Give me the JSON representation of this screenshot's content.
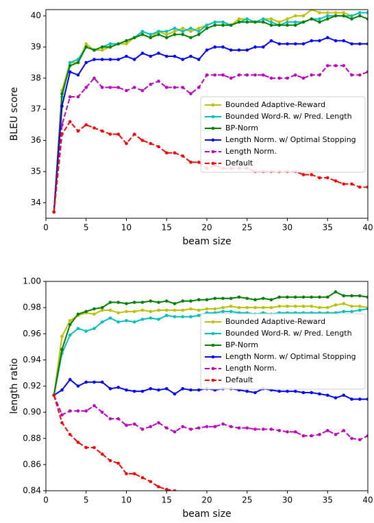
{
  "chart_data": [
    {
      "type": "line",
      "xlabel": "beam size",
      "ylabel": "BLEU score",
      "x": [
        1,
        2,
        3,
        4,
        5,
        6,
        7,
        8,
        9,
        10,
        11,
        12,
        13,
        14,
        15,
        16,
        17,
        18,
        19,
        20,
        21,
        22,
        23,
        24,
        25,
        26,
        27,
        28,
        29,
        30,
        31,
        32,
        33,
        34,
        35,
        36,
        37,
        38,
        39,
        40
      ],
      "xlim": [
        0,
        40
      ],
      "xticks": [
        0,
        5,
        10,
        15,
        20,
        25,
        30,
        35,
        40
      ],
      "ylim": [
        33.5,
        40.2
      ],
      "yticks": [
        34,
        35,
        36,
        37,
        38,
        39,
        40
      ],
      "legend": "center right",
      "series": [
        {
          "name": "Bounded Adaptive-Reward",
          "color": "#bfbf00",
          "linestyle": "solid",
          "values": [
            33.7,
            37.6,
            38.5,
            38.5,
            39.1,
            38.9,
            38.9,
            39.0,
            39.1,
            39.1,
            39.3,
            39.4,
            39.3,
            39.5,
            39.4,
            39.5,
            39.6,
            39.5,
            39.6,
            39.7,
            39.8,
            39.8,
            39.7,
            39.9,
            39.9,
            39.8,
            39.9,
            39.9,
            39.8,
            39.9,
            40.0,
            40.0,
            40.2,
            40.1,
            40.1,
            40.1,
            40.1,
            40.0,
            40.1,
            40.1
          ]
        },
        {
          "name": "Bounded Word-R. w/ Pred. Length",
          "color": "#00bfbf",
          "linestyle": "solid",
          "values": [
            33.7,
            37.4,
            38.5,
            38.6,
            39.0,
            38.9,
            39.0,
            39.1,
            39.1,
            39.2,
            39.3,
            39.5,
            39.4,
            39.5,
            39.5,
            39.6,
            39.5,
            39.6,
            39.5,
            39.7,
            39.8,
            39.8,
            39.7,
            39.8,
            39.9,
            39.8,
            39.9,
            39.8,
            39.7,
            39.8,
            39.8,
            39.8,
            39.9,
            39.9,
            40.0,
            40.0,
            40.0,
            40.0,
            40.1,
            40.1
          ]
        },
        {
          "name": "BP-Norm",
          "color": "#008000",
          "linestyle": "solid",
          "values": [
            33.7,
            37.5,
            38.4,
            38.5,
            39.0,
            38.9,
            39.0,
            39.0,
            39.1,
            39.2,
            39.3,
            39.4,
            39.3,
            39.4,
            39.3,
            39.4,
            39.4,
            39.3,
            39.4,
            39.6,
            39.7,
            39.7,
            39.7,
            39.8,
            39.8,
            39.8,
            39.8,
            39.7,
            39.7,
            39.7,
            39.7,
            39.8,
            39.9,
            39.8,
            39.9,
            40.0,
            40.0,
            39.9,
            40.0,
            39.9
          ]
        },
        {
          "name": "Length Norm. w/ Optimal Stopping",
          "color": "#0000ff",
          "linestyle": "solid",
          "values": [
            33.7,
            37.1,
            38.2,
            38.1,
            38.5,
            38.6,
            38.6,
            38.6,
            38.6,
            38.7,
            38.6,
            38.8,
            38.7,
            38.8,
            38.7,
            38.7,
            38.6,
            38.7,
            38.6,
            38.9,
            39.0,
            39.0,
            38.9,
            38.9,
            38.9,
            39.0,
            39.0,
            39.2,
            39.1,
            39.1,
            39.1,
            39.1,
            39.2,
            39.2,
            39.3,
            39.2,
            39.2,
            39.1,
            39.1,
            39.1
          ]
        },
        {
          "name": "Length Norm.",
          "color": "#bf00bf",
          "linestyle": "dashed",
          "values": [
            33.7,
            36.5,
            37.4,
            37.4,
            37.7,
            38.0,
            37.7,
            37.7,
            37.7,
            37.6,
            37.7,
            37.6,
            37.8,
            37.9,
            37.7,
            37.7,
            37.7,
            37.5,
            37.7,
            38.1,
            38.1,
            38.1,
            38.0,
            38.1,
            38.1,
            38.1,
            38.1,
            38.0,
            38.0,
            38.0,
            38.1,
            38.0,
            38.1,
            38.1,
            38.4,
            38.4,
            38.4,
            38.1,
            38.1,
            38.2
          ]
        },
        {
          "name": "Default",
          "color": "#ff0000",
          "linestyle": "dashed",
          "values": [
            33.7,
            36.2,
            36.6,
            36.3,
            36.5,
            36.4,
            36.3,
            36.2,
            36.2,
            35.9,
            36.2,
            36.0,
            35.9,
            35.8,
            35.6,
            35.6,
            35.5,
            35.3,
            35.3,
            35.1,
            35.2,
            35.1,
            35.1,
            35.1,
            35.1,
            35.0,
            35.0,
            35.0,
            35.0,
            35.0,
            35.0,
            34.9,
            34.9,
            34.8,
            34.8,
            34.7,
            34.6,
            34.6,
            34.5,
            34.5
          ]
        }
      ]
    },
    {
      "type": "line",
      "xlabel": "beam size",
      "ylabel": "length ratio",
      "x": [
        1,
        2,
        3,
        4,
        5,
        6,
        7,
        8,
        9,
        10,
        11,
        12,
        13,
        14,
        15,
        16,
        17,
        18,
        19,
        20,
        21,
        22,
        23,
        24,
        25,
        26,
        27,
        28,
        29,
        30,
        31,
        32,
        33,
        34,
        35,
        36,
        37,
        38,
        39,
        40
      ],
      "xlim": [
        0,
        40
      ],
      "xticks": [
        0,
        5,
        10,
        15,
        20,
        25,
        30,
        35,
        40
      ],
      "ylim": [
        0.84,
        1.0
      ],
      "yticks": [
        0.84,
        0.86,
        0.88,
        {
          "value": 0.9,
          "label": "0.90"
        },
        0.92,
        0.94,
        0.96,
        0.98,
        {
          "value": 1.0,
          "label": "1.00"
        }
      ],
      "legend": "upper right",
      "series": [
        {
          "name": "Bounded Adaptive-Reward",
          "color": "#bfbf00",
          "linestyle": "solid",
          "values": [
            0.913,
            0.958,
            0.97,
            0.974,
            0.976,
            0.975,
            0.978,
            0.978,
            0.976,
            0.977,
            0.977,
            0.978,
            0.977,
            0.978,
            0.978,
            0.978,
            0.978,
            0.979,
            0.978,
            0.979,
            0.979,
            0.98,
            0.981,
            0.98,
            0.98,
            0.98,
            0.98,
            0.98,
            0.981,
            0.981,
            0.981,
            0.981,
            0.981,
            0.98,
            0.98,
            0.982,
            0.983,
            0.981,
            0.981,
            0.98
          ]
        },
        {
          "name": "Bounded Word-R. w/ Pred. Length",
          "color": "#00bfbf",
          "linestyle": "solid",
          "values": [
            0.913,
            0.945,
            0.959,
            0.964,
            0.962,
            0.964,
            0.969,
            0.972,
            0.969,
            0.97,
            0.969,
            0.971,
            0.972,
            0.971,
            0.974,
            0.973,
            0.973,
            0.973,
            0.974,
            0.976,
            0.976,
            0.977,
            0.977,
            0.976,
            0.976,
            0.975,
            0.976,
            0.975,
            0.976,
            0.976,
            0.976,
            0.976,
            0.976,
            0.976,
            0.976,
            0.976,
            0.977,
            0.977,
            0.978,
            0.979
          ]
        },
        {
          "name": "BP-Norm",
          "color": "#008000",
          "linestyle": "solid",
          "values": [
            0.913,
            0.948,
            0.967,
            0.975,
            0.977,
            0.979,
            0.98,
            0.984,
            0.984,
            0.983,
            0.984,
            0.984,
            0.985,
            0.984,
            0.985,
            0.983,
            0.985,
            0.985,
            0.986,
            0.986,
            0.987,
            0.987,
            0.987,
            0.988,
            0.987,
            0.986,
            0.987,
            0.986,
            0.988,
            0.988,
            0.988,
            0.988,
            0.988,
            0.988,
            0.988,
            0.992,
            0.989,
            0.989,
            0.989,
            0.988
          ]
        },
        {
          "name": "Length Norm. w/ Optimal Stopping",
          "color": "#0000ff",
          "linestyle": "solid",
          "values": [
            0.913,
            0.917,
            0.925,
            0.92,
            0.923,
            0.923,
            0.923,
            0.918,
            0.919,
            0.917,
            0.916,
            0.916,
            0.918,
            0.917,
            0.918,
            0.914,
            0.918,
            0.917,
            0.917,
            0.918,
            0.917,
            0.918,
            0.918,
            0.917,
            0.916,
            0.915,
            0.918,
            0.917,
            0.916,
            0.916,
            0.916,
            0.915,
            0.915,
            0.914,
            0.913,
            0.911,
            0.913,
            0.91,
            0.91,
            0.91
          ]
        },
        {
          "name": "Length Norm.",
          "color": "#bf00bf",
          "linestyle": "dashed",
          "values": [
            0.913,
            0.898,
            0.901,
            0.901,
            0.901,
            0.905,
            0.9,
            0.895,
            0.895,
            0.89,
            0.891,
            0.887,
            0.889,
            0.892,
            0.888,
            0.885,
            0.889,
            0.887,
            0.888,
            0.889,
            0.889,
            0.891,
            0.889,
            0.888,
            0.888,
            0.887,
            0.887,
            0.887,
            0.886,
            0.885,
            0.885,
            0.882,
            0.882,
            0.883,
            0.886,
            0.883,
            0.886,
            0.88,
            0.879,
            0.882
          ]
        },
        {
          "name": "Default",
          "color": "#ff0000",
          "linestyle": "dashed",
          "values": [
            0.913,
            0.892,
            0.883,
            0.877,
            0.873,
            0.873,
            0.868,
            0.863,
            0.861,
            0.853,
            0.853,
            0.85,
            0.847,
            0.843,
            0.841,
            0.84,
            null,
            null,
            null,
            null,
            null,
            null,
            null,
            null,
            null,
            null,
            null,
            null,
            null,
            null,
            null,
            null,
            null,
            null,
            null,
            null,
            null,
            null,
            null,
            null
          ]
        }
      ]
    }
  ]
}
